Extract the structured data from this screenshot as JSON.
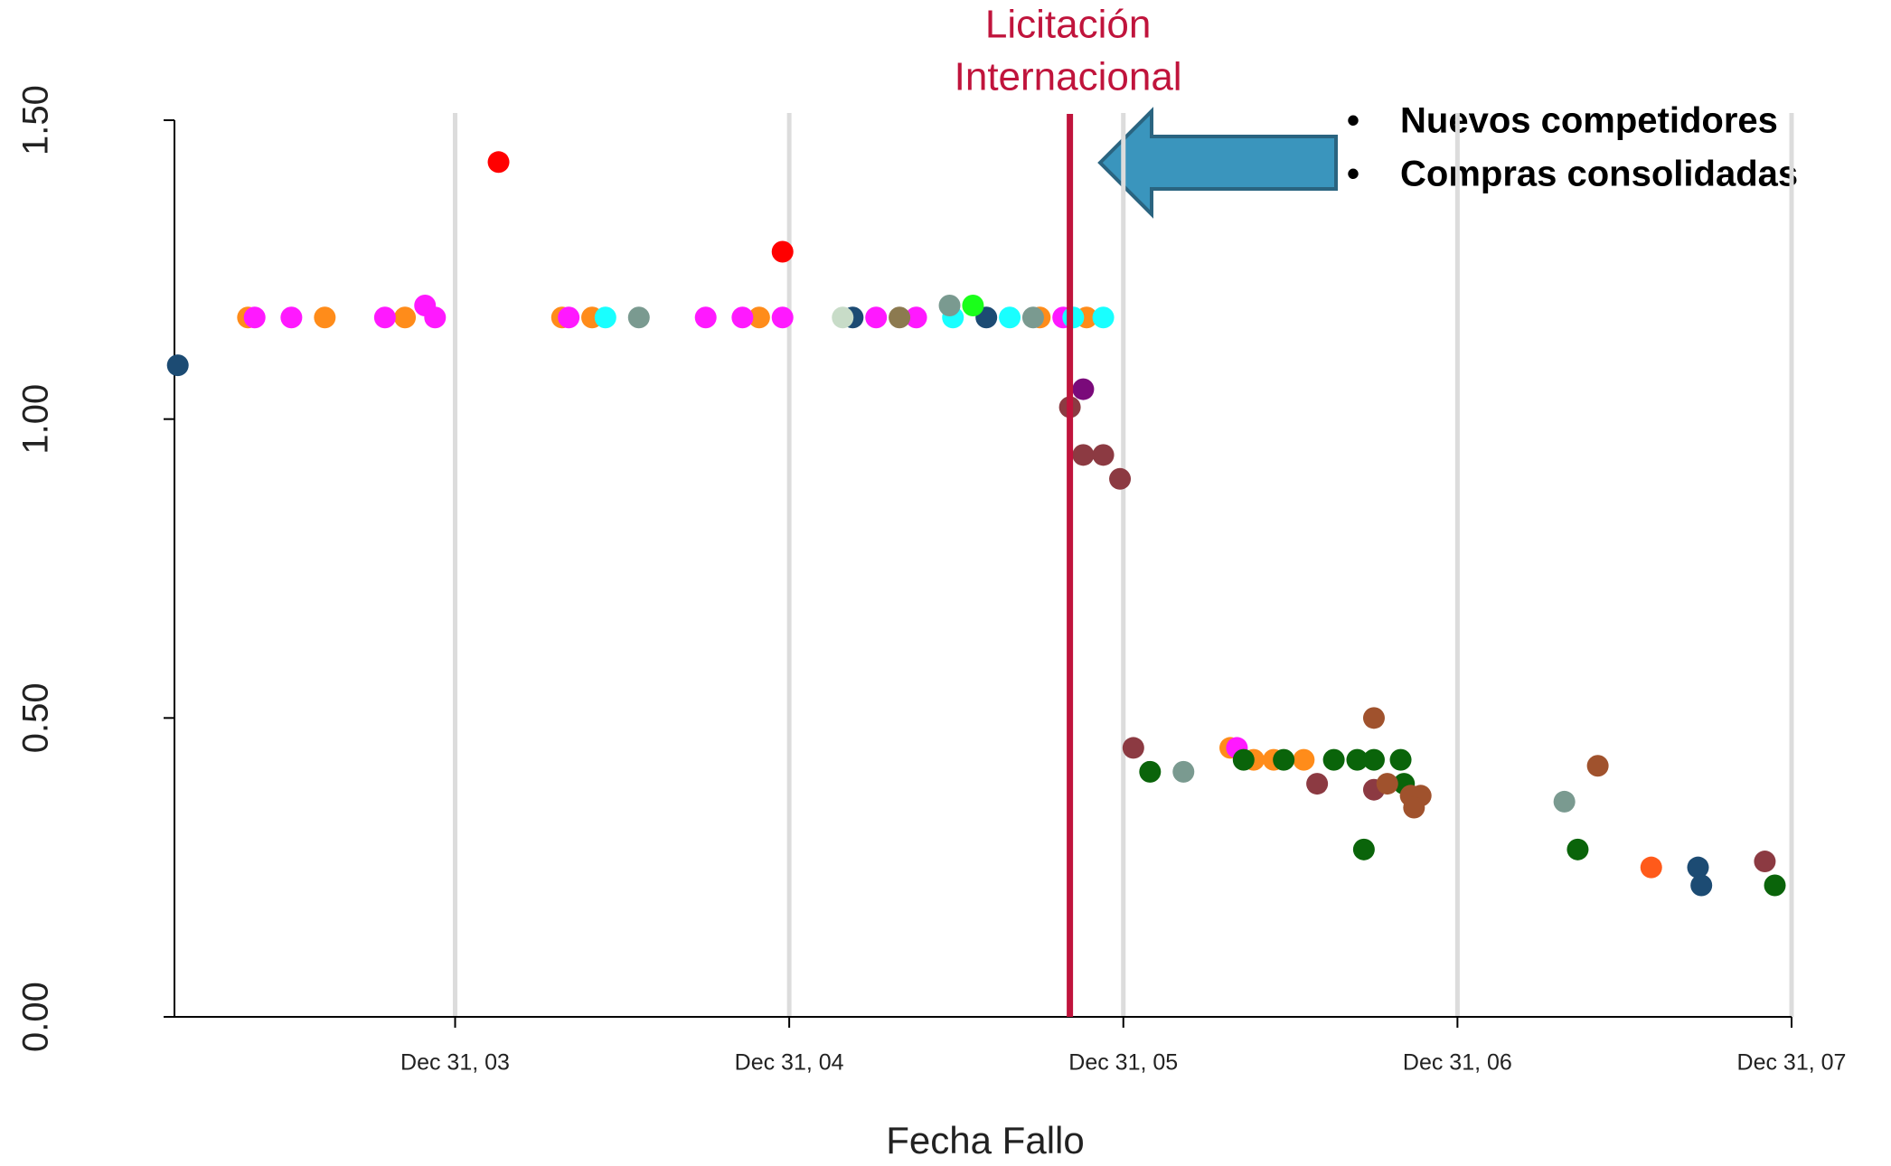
{
  "chart_data": {
    "type": "scatter",
    "x_label": "Fecha Fallo",
    "xlim": [
      2003.16,
      2008.0
    ],
    "ylim": [
      0,
      1.5
    ],
    "xticks": [
      {
        "value": 2004,
        "label": "Dec 31, 03"
      },
      {
        "value": 2005,
        "label": "Dec 31, 04"
      },
      {
        "value": 2006,
        "label": "Dec 31, 05"
      },
      {
        "value": 2007,
        "label": "Dec 31, 06"
      },
      {
        "value": 2008,
        "label": "Dec 31, 07"
      }
    ],
    "yticks": [
      {
        "value": 0,
        "label": "0.00"
      },
      {
        "value": 0.5,
        "label": "0.50"
      },
      {
        "value": 1,
        "label": "1.00"
      },
      {
        "value": 1.5,
        "label": "1.50"
      }
    ],
    "grid": "x",
    "annotation": {
      "x": 2005.84,
      "lines": [
        "Licitación",
        "Internacional"
      ],
      "color": "#c0143c"
    },
    "notes": [
      "Nuevos competidores",
      "Compras consolidadas"
    ],
    "series": [
      {
        "color": "#1c4b73",
        "x": [
          2003.17,
          2005.19,
          2005.59,
          2007.72,
          2007.73
        ],
        "values": [
          1.09,
          1.17,
          1.17,
          0.25,
          0.22
        ]
      },
      {
        "color": "#ff0000",
        "x": [
          2004.13,
          2004.98
        ],
        "values": [
          1.43,
          1.28
        ]
      },
      {
        "color": "#ff8c1a",
        "x": [
          2003.38,
          2003.61,
          2003.85,
          2004.32,
          2004.41,
          2004.91,
          2005.75,
          2005.89,
          2006.32,
          2006.39,
          2006.45,
          2006.54
        ],
        "values": [
          1.17,
          1.17,
          1.17,
          1.17,
          1.17,
          1.17,
          1.17,
          1.17,
          0.45,
          0.43,
          0.43,
          0.43
        ]
      },
      {
        "color": "#ff5a1a",
        "x": [
          2007.58
        ],
        "values": [
          0.25
        ]
      },
      {
        "color": "#ff19ff",
        "x": [
          2003.4,
          2003.51,
          2003.79,
          2003.91,
          2003.94,
          2004.34,
          2004.75,
          2004.86,
          2004.98,
          2005.26,
          2005.38,
          2005.82,
          2006.34
        ],
        "values": [
          1.17,
          1.17,
          1.17,
          1.19,
          1.17,
          1.17,
          1.17,
          1.17,
          1.17,
          1.17,
          1.17,
          1.17,
          0.45
        ]
      },
      {
        "color": "#19ffff",
        "x": [
          2004.45,
          2005.49,
          2005.66,
          2005.85,
          2005.94
        ],
        "values": [
          1.17,
          1.17,
          1.17,
          1.17,
          1.17
        ]
      },
      {
        "color": "#7a9a90",
        "x": [
          2004.55,
          2005.48,
          2005.73,
          2006.18,
          2007.32
        ],
        "values": [
          1.17,
          1.19,
          1.17,
          0.41,
          0.36
        ]
      },
      {
        "color": "#1aff1a",
        "x": [
          2005.55
        ],
        "values": [
          1.19
        ]
      },
      {
        "color": "#c8dcc8",
        "x": [
          2005.16
        ],
        "values": [
          1.17
        ]
      },
      {
        "color": "#8c7a50",
        "x": [
          2005.33
        ],
        "values": [
          1.17
        ]
      },
      {
        "color": "#7a0a7a",
        "x": [
          2005.88
        ],
        "values": [
          1.05
        ]
      },
      {
        "color": "#8c3a42",
        "x": [
          2005.84,
          2005.88,
          2005.94,
          2005.99,
          2006.03,
          2006.58,
          2006.75,
          2007.92
        ],
        "values": [
          1.02,
          0.94,
          0.94,
          0.9,
          0.45,
          0.39,
          0.38,
          0.26
        ]
      },
      {
        "color": "#0a640a",
        "x": [
          2006.08,
          2006.36,
          2006.48,
          2006.63,
          2006.7,
          2006.75,
          2006.83,
          2006.72,
          2006.84,
          2007.36,
          2007.95
        ],
        "values": [
          0.41,
          0.43,
          0.43,
          0.43,
          0.43,
          0.43,
          0.43,
          0.28,
          0.39,
          0.28,
          0.22
        ]
      },
      {
        "color": "#a0522d",
        "x": [
          2006.75,
          2006.79,
          2006.86,
          2006.89,
          2006.87,
          2007.42
        ],
        "values": [
          0.5,
          0.39,
          0.37,
          0.37,
          0.35,
          0.42
        ]
      }
    ]
  }
}
